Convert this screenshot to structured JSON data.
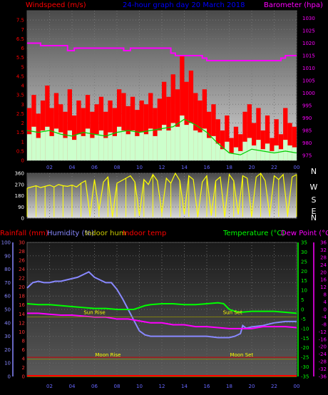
{
  "chart_data": [
    {
      "type": "bar",
      "title": "24-hour graph day  20 March 2018",
      "left_label": "Windspeed (m/s)",
      "right_label": "Barometer (hpa)",
      "yticks_left": [
        "0",
        "0.5",
        "1",
        "1.5",
        "2",
        "2.5",
        "3",
        "3.5",
        "4",
        "4.5",
        "5",
        "5.5",
        "6",
        "6.5",
        "7",
        "7.5"
      ],
      "yticks_right": [
        "975",
        "980",
        "985",
        "990",
        "995",
        "1000",
        "1005",
        "1010",
        "1015",
        "1020",
        "1025",
        "1030"
      ],
      "ylim_left": [
        0,
        8
      ],
      "ylim_right": [
        973,
        1033
      ],
      "xticks": [
        "02",
        "04",
        "06",
        "08",
        "10",
        "12",
        "14",
        "16",
        "18",
        "20",
        "22",
        "00"
      ],
      "series": [
        {
          "kind": "gust",
          "color": "#ff0000",
          "x": [
            0.2,
            0.6,
            1,
            1.4,
            1.8,
            2.2,
            2.6,
            3,
            3.4,
            3.8,
            4.2,
            4.6,
            5,
            5.4,
            5.8,
            6.2,
            6.6,
            7,
            7.4,
            7.8,
            8.2,
            8.6,
            9,
            9.4,
            9.8,
            10.2,
            10.6,
            11,
            11.4,
            11.8,
            12.2,
            12.6,
            13,
            13.4,
            13.8,
            14.2,
            14.6,
            15,
            15.4,
            15.8,
            16.2,
            16.6,
            17,
            17.4,
            17.8,
            18.2,
            18.6,
            19,
            19.4,
            19.8,
            20.2,
            20.6,
            21,
            21.4,
            21.8,
            22.2,
            22.6,
            23,
            23.4,
            23.8
          ],
          "y": [
            2.8,
            3.5,
            2.5,
            3.2,
            4.0,
            2.8,
            3.6,
            3.0,
            2.6,
            3.8,
            2.4,
            3.2,
            2.8,
            3.5,
            2.6,
            3.0,
            3.4,
            2.6,
            3.2,
            2.8,
            3.8,
            3.6,
            2.9,
            3.4,
            2.7,
            3.2,
            3.0,
            3.6,
            2.8,
            3.3,
            4.2,
            3.4,
            4.6,
            3.8,
            5.6,
            4.2,
            4.8,
            3.6,
            3.2,
            3.8,
            2.6,
            3.0,
            2.2,
            1.6,
            2.4,
            1.2,
            1.8,
            1.4,
            2.6,
            3.0,
            2.0,
            2.8,
            1.6,
            2.4,
            1.2,
            2.2,
            1.4,
            2.8,
            2.0,
            1.8
          ]
        },
        {
          "kind": "average",
          "color": "#ccffcc",
          "x": [
            0.2,
            0.6,
            1,
            1.4,
            1.8,
            2.2,
            2.6,
            3,
            3.4,
            3.8,
            4.2,
            4.6,
            5,
            5.4,
            5.8,
            6.2,
            6.6,
            7,
            7.4,
            7.8,
            8.2,
            8.6,
            9,
            9.4,
            9.8,
            10.2,
            10.6,
            11,
            11.4,
            11.8,
            12.2,
            12.6,
            13,
            13.4,
            13.8,
            14.2,
            14.6,
            15,
            15.4,
            15.8,
            16.2,
            16.6,
            17,
            17.4,
            17.8,
            18.2,
            18.6,
            19,
            19.4,
            19.8,
            20.2,
            20.6,
            21,
            21.4,
            21.8,
            22.2,
            22.6,
            23,
            23.4,
            23.8
          ],
          "y": [
            1.4,
            1.8,
            1.2,
            1.6,
            1.8,
            1.3,
            1.7,
            1.5,
            1.2,
            1.6,
            1.1,
            1.4,
            1.3,
            1.7,
            1.2,
            1.4,
            1.6,
            1.2,
            1.5,
            1.3,
            1.8,
            1.6,
            1.4,
            1.6,
            1.3,
            1.5,
            1.4,
            1.7,
            1.3,
            1.6,
            1.9,
            1.6,
            2.0,
            1.8,
            2.4,
            1.9,
            2.0,
            1.6,
            1.5,
            1.7,
            1.2,
            1.3,
            0.9,
            0.6,
            1.0,
            0.4,
            0.7,
            0.5,
            1.0,
            1.2,
            0.8,
            1.1,
            0.6,
            0.9,
            0.5,
            0.8,
            0.6,
            1.1,
            0.8,
            0.7
          ]
        },
        {
          "kind": "line",
          "name": "wind-avg-line",
          "color": "#00cc00",
          "x": [
            0,
            1,
            2,
            3,
            4,
            5,
            6,
            7,
            8,
            9,
            10,
            11,
            12,
            13,
            14,
            15,
            16,
            17,
            18,
            19,
            20,
            21,
            22,
            23,
            24
          ],
          "y": [
            1.6,
            1.5,
            1.6,
            1.4,
            1.3,
            1.5,
            1.4,
            1.3,
            1.5,
            1.6,
            1.5,
            1.6,
            1.7,
            1.8,
            2.2,
            1.9,
            1.5,
            0.9,
            0.4,
            0.3,
            0.6,
            0.5,
            0.4,
            0.5,
            0.4
          ]
        },
        {
          "kind": "barometer",
          "color": "#ff00ff",
          "x": [
            0,
            1.2,
            1.2,
            3.6,
            3.6,
            4.2,
            4.2,
            8.6,
            8.6,
            9.2,
            9.2,
            12.8,
            12.8,
            13.2,
            13.2,
            15.6,
            15.6,
            16.0,
            16.0,
            22.6,
            22.6,
            23.0,
            23.0,
            24
          ],
          "y": [
            1020,
            1020,
            1019,
            1019,
            1017,
            1017,
            1018,
            1018,
            1017,
            1017,
            1018,
            1018,
            1016,
            1016,
            1015,
            1015,
            1014,
            1014,
            1013,
            1013,
            1014,
            1014,
            1015,
            1015
          ]
        }
      ]
    },
    {
      "type": "scatter",
      "title": "",
      "left_label": "",
      "yticks_left": [
        "0",
        "90",
        "180",
        "270",
        "360"
      ],
      "yticks_right": [
        "N",
        "E",
        "S",
        "W",
        "N"
      ],
      "ylim": [
        0,
        360
      ],
      "xticks": [
        "02",
        "04",
        "06",
        "08",
        "10",
        "12",
        "14",
        "16",
        "18",
        "20",
        "22",
        "00"
      ],
      "series": [
        {
          "kind": "direction",
          "color": "#ffff00",
          "x": [
            0,
            0.4,
            0.8,
            1.2,
            1.6,
            2,
            2.4,
            2.8,
            3.2,
            3.6,
            4,
            4.4,
            4.8,
            5.2,
            5.6,
            6,
            6.4,
            6.8,
            7.2,
            7.6,
            8,
            8.4,
            8.8,
            9.2,
            9.6,
            10,
            10.4,
            10.8,
            11.2,
            11.6,
            12,
            12.4,
            12.8,
            13.2,
            13.6,
            14,
            14.4,
            14.8,
            15.2,
            15.6,
            16,
            16.4,
            16.8,
            17.2,
            17.6,
            18,
            18.4,
            18.8,
            19.2,
            19.6,
            20,
            20.4,
            20.8,
            21.2,
            21.6,
            22,
            22.4,
            22.8,
            23.2,
            23.6,
            24
          ],
          "y": [
            240,
            250,
            260,
            245,
            255,
            265,
            250,
            270,
            260,
            255,
            265,
            250,
            280,
            300,
            20,
            310,
            60,
            290,
            330,
            10,
            280,
            300,
            320,
            340,
            290,
            20,
            310,
            270,
            350,
            300,
            40,
            320,
            280,
            360,
            300,
            30,
            340,
            310,
            10,
            290,
            340,
            20,
            300,
            330,
            10,
            350,
            300,
            30,
            340,
            320,
            10,
            330,
            360,
            300,
            20,
            340,
            310,
            350,
            20,
            330,
            350
          ]
        }
      ]
    },
    {
      "type": "line",
      "title": "",
      "left_labels": [
        "Rainfall (mm)",
        "Humidity (%)",
        "Indoor hum",
        "Indoor temp"
      ],
      "right_labels": [
        "Temperature (°C)",
        "Dew Point (°C)"
      ],
      "yticks_humidity": [
        "0",
        "10",
        "20",
        "30",
        "40",
        "50",
        "60",
        "70",
        "80",
        "90",
        "100"
      ],
      "yticks_rain": [
        "0",
        "2",
        "4",
        "6",
        "8",
        "10",
        "12",
        "14",
        "16",
        "18",
        "20",
        "22",
        "24",
        "26",
        "28",
        "30"
      ],
      "yticks_temp": [
        "-35",
        "-30",
        "-25",
        "-20",
        "-15",
        "-10",
        "-5",
        "0",
        "5",
        "10",
        "15",
        "20",
        "25",
        "30",
        "35"
      ],
      "yticks_dew": [
        "-36",
        "-32",
        "-28",
        "-24",
        "-20",
        "-16",
        "-12",
        "-8",
        "-4",
        "0",
        "4",
        "8",
        "12",
        "16",
        "20",
        "24",
        "28",
        "32",
        "36"
      ],
      "xticks": [
        "02",
        "04",
        "06",
        "08",
        "10",
        "12",
        "14",
        "16",
        "18",
        "20",
        "22",
        "00"
      ],
      "annotations": [
        {
          "label": "Sun Rise",
          "time": 6.0,
          "y": 14
        },
        {
          "label": "Sun Set",
          "time": 18.3,
          "y": 14
        },
        {
          "label": "Moon Rise",
          "time": 7.2,
          "y": 4.5
        },
        {
          "label": "Moon Set",
          "time": 19.1,
          "y": 4.5
        }
      ],
      "series": [
        {
          "name": "Humidity (%)",
          "color": "#8888ff",
          "axis": "humidity",
          "x": [
            0,
            0.5,
            1,
            1.5,
            2,
            2.5,
            3,
            3.5,
            4,
            4.5,
            5,
            5.5,
            6,
            6.5,
            7,
            7.5,
            8,
            8.5,
            9,
            9.5,
            10,
            10.5,
            11,
            11.5,
            12,
            13,
            14,
            15,
            16,
            17,
            18,
            18.5,
            19,
            19.2,
            19.5,
            20,
            21,
            22,
            23,
            24
          ],
          "y": [
            66,
            70,
            71,
            70,
            70,
            71,
            71,
            72,
            73,
            74,
            76,
            78,
            74,
            72,
            70,
            70,
            65,
            58,
            50,
            42,
            34,
            31,
            30,
            30,
            30,
            30,
            30,
            30,
            30,
            29,
            29,
            30,
            32,
            38,
            36,
            37,
            38,
            40,
            41,
            41
          ]
        },
        {
          "name": "Temperature (°C)",
          "color": "#00ff00",
          "axis": "temp",
          "x": [
            0,
            1,
            2,
            3,
            4,
            5,
            6,
            7,
            8,
            9,
            9.5,
            10,
            10.5,
            11,
            12,
            13,
            14,
            15,
            16,
            17,
            17.5,
            18,
            18.5,
            19,
            20,
            21,
            22,
            23,
            24
          ],
          "y": [
            3,
            2.5,
            2.5,
            2,
            1.5,
            1,
            0.5,
            0.5,
            0,
            0,
            0,
            1,
            2,
            2.5,
            3,
            3,
            2.5,
            2.5,
            3,
            3.5,
            3,
            0,
            -1,
            -1.5,
            -1,
            -1,
            -1,
            -1.5,
            -2
          ]
        },
        {
          "name": "Dew Point (°C)",
          "color": "#ff00ff",
          "axis": "temp",
          "x": [
            0,
            1,
            2,
            3,
            4,
            5,
            6,
            7,
            8,
            9,
            10,
            11,
            12,
            13,
            14,
            15,
            16,
            17,
            18,
            19,
            20,
            21,
            22,
            23,
            24
          ],
          "y": [
            -2,
            -2,
            -2.5,
            -3,
            -3,
            -3.5,
            -4,
            -4,
            -5,
            -5,
            -6,
            -7,
            -7,
            -8,
            -8,
            -9,
            -9,
            -9.5,
            -10,
            -10,
            -10,
            -9,
            -9,
            -9,
            -9.5
          ]
        },
        {
          "name": "Indoor temp",
          "color": "#cc0000",
          "axis": "temp",
          "x": [
            0,
            24
          ],
          "y": [
            -25,
            -25
          ]
        },
        {
          "name": "Indoor hum",
          "color": "#cccc00",
          "axis": "humidity",
          "x": [
            0,
            24
          ],
          "y": [
            0,
            0
          ]
        }
      ]
    }
  ],
  "colors": {
    "windspeed_label": "#ff0000",
    "title": "#0000ff",
    "barometer_label": "#ff00ff",
    "rainfall_label": "#ff0000",
    "humidity_label": "#8888ff",
    "indoor_hum_label": "#cccc00",
    "indoor_temp_label": "#ff0000",
    "temperature_label": "#00ff00",
    "dew_point_label": "#ff00ff"
  }
}
